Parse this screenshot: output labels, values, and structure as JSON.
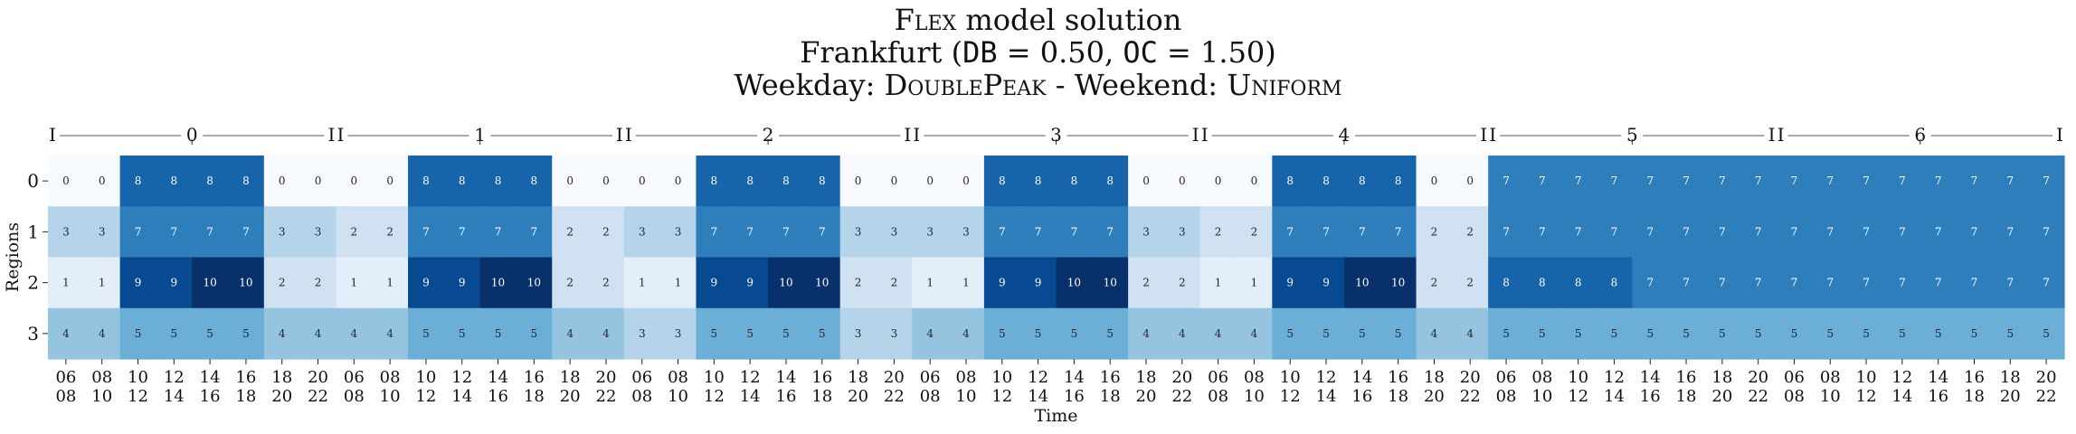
{
  "header": {
    "line1": {
      "prefix": "Flex",
      "text": " model solution"
    },
    "line2": {
      "city": "Frankfurt (",
      "db_key": "DB",
      "db_val": " = 0.50, ",
      "oc_key": "OC",
      "oc_val": " = 1.50)"
    },
    "line3": {
      "wd_label": "Weekday: ",
      "wd_profile": "DoublePeak",
      "sep": " - Weekend: ",
      "we_profile": "Uniform"
    }
  },
  "chart_data": {
    "type": "heatmap",
    "title": "Flex model solution",
    "xlabel": "Time",
    "ylabel": "Regions",
    "rows": [
      "0",
      "1",
      "2",
      "3"
    ],
    "columns": [
      "06\n08",
      "08\n10",
      "10\n12",
      "12\n14",
      "14\n16",
      "16\n18",
      "18\n20",
      "20\n22",
      "06\n08",
      "08\n10",
      "10\n12",
      "12\n14",
      "14\n16",
      "16\n18",
      "18\n20",
      "20\n22",
      "06\n08",
      "08\n10",
      "10\n12",
      "12\n14",
      "14\n16",
      "16\n18",
      "18\n20",
      "20\n22",
      "06\n08",
      "08\n10",
      "10\n12",
      "12\n14",
      "14\n16",
      "16\n18",
      "18\n20",
      "20\n22",
      "06\n08",
      "08\n10",
      "10\n12",
      "12\n14",
      "14\n16",
      "16\n18",
      "18\n20",
      "20\n22",
      "06\n08",
      "08\n10",
      "10\n12",
      "12\n14",
      "14\n16",
      "16\n18",
      "18\n20",
      "20\n22",
      "06\n08",
      "08\n10",
      "10\n12",
      "12\n14",
      "14\n16",
      "16\n18",
      "18\n20",
      "20\n22"
    ],
    "days": [
      "0",
      "1",
      "2",
      "3",
      "4",
      "5",
      "6"
    ],
    "day_bracket_marks": [
      "I",
      "I"
    ],
    "values": [
      [
        0,
        0,
        8,
        8,
        8,
        8,
        0,
        0,
        0,
        0,
        8,
        8,
        8,
        8,
        0,
        0,
        0,
        0,
        8,
        8,
        8,
        8,
        0,
        0,
        0,
        0,
        8,
        8,
        8,
        8,
        0,
        0,
        0,
        0,
        8,
        8,
        8,
        8,
        0,
        0,
        7,
        7,
        7,
        7,
        7,
        7,
        7,
        7,
        7,
        7,
        7,
        7,
        7,
        7,
        7,
        7
      ],
      [
        3,
        3,
        7,
        7,
        7,
        7,
        3,
        3,
        2,
        2,
        7,
        7,
        7,
        7,
        2,
        2,
        3,
        3,
        7,
        7,
        7,
        7,
        3,
        3,
        3,
        3,
        7,
        7,
        7,
        7,
        3,
        3,
        2,
        2,
        7,
        7,
        7,
        7,
        2,
        2,
        7,
        7,
        7,
        7,
        7,
        7,
        7,
        7,
        7,
        7,
        7,
        7,
        7,
        7,
        7,
        7
      ],
      [
        1,
        1,
        9,
        9,
        10,
        10,
        2,
        2,
        1,
        1,
        9,
        9,
        10,
        10,
        2,
        2,
        1,
        1,
        9,
        9,
        10,
        10,
        2,
        2,
        1,
        1,
        9,
        9,
        10,
        10,
        2,
        2,
        1,
        1,
        9,
        9,
        10,
        10,
        2,
        2,
        8,
        8,
        8,
        8,
        7,
        7,
        7,
        7,
        7,
        7,
        7,
        7,
        7,
        7,
        7,
        7
      ],
      [
        4,
        4,
        5,
        5,
        5,
        5,
        4,
        4,
        4,
        4,
        5,
        5,
        5,
        5,
        4,
        4,
        3,
        3,
        5,
        5,
        5,
        5,
        3,
        3,
        4,
        4,
        5,
        5,
        5,
        5,
        4,
        4,
        4,
        4,
        5,
        5,
        5,
        5,
        4,
        4,
        5,
        5,
        5,
        5,
        5,
        5,
        5,
        5,
        5,
        5,
        5,
        5,
        5,
        5,
        5,
        5
      ]
    ],
    "colorscale": "Blues",
    "vmin": 0,
    "vmax": 10,
    "colorbar": false
  }
}
